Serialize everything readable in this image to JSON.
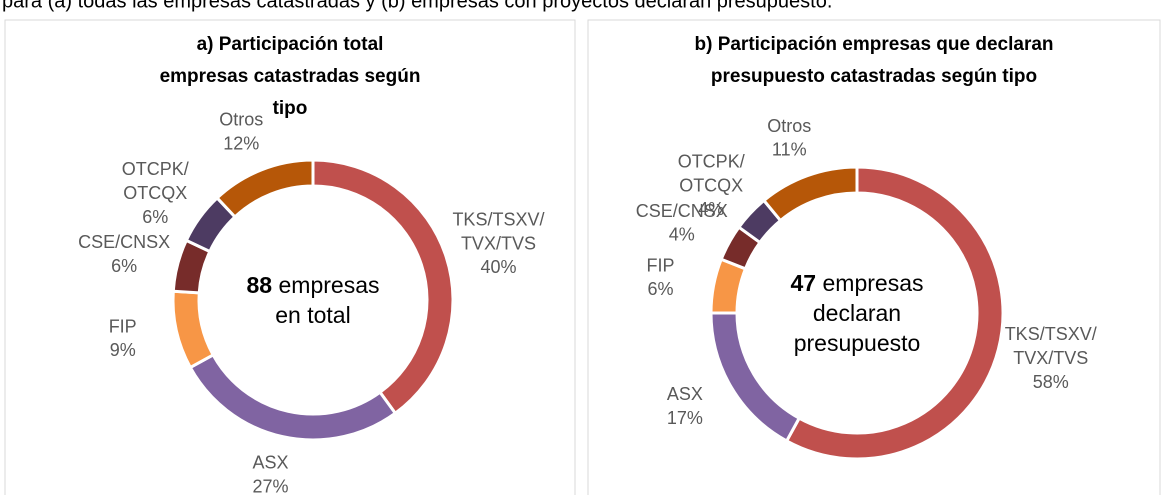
{
  "caption": "para (a) todas las empresas catastradas y (b) empresas con proyectos declaran presupuesto.",
  "chart_data": [
    {
      "type": "pie",
      "title": "a) Participación total empresas catastradas según tipo",
      "categories": [
        "TKS/TSXV/TVX/TVS",
        "ASX",
        "FIP",
        "CSE/CNSX",
        "OTCPK/OTCQX",
        "Otros"
      ],
      "values": [
        40,
        27,
        9,
        6,
        6,
        12
      ],
      "value_labels": [
        "40%",
        "27%",
        "9%",
        "6%",
        "6%",
        "12%"
      ],
      "colors": [
        "#c0504d",
        "#8064a2",
        "#f79646",
        "#772c2a",
        "#4d3b62",
        "#b65708"
      ],
      "total": 88,
      "center_label": "empresas en total"
    },
    {
      "type": "pie",
      "title": "b) Participación empresas que declaran presupuesto catastradas según tipo",
      "categories": [
        "TKS/TSXV/TVX/TVS",
        "ASX",
        "FIP",
        "CSE/CNSX",
        "OTCPK/OTCQX",
        "Otros"
      ],
      "values": [
        58,
        17,
        6,
        4,
        4,
        11
      ],
      "value_labels": [
        "58%",
        "17%",
        "6%",
        "4%",
        "4%",
        "11%"
      ],
      "colors": [
        "#c0504d",
        "#8064a2",
        "#f79646",
        "#772c2a",
        "#4d3b62",
        "#b65708"
      ],
      "total": 47,
      "center_label": "empresas declaran presupuesto"
    }
  ]
}
